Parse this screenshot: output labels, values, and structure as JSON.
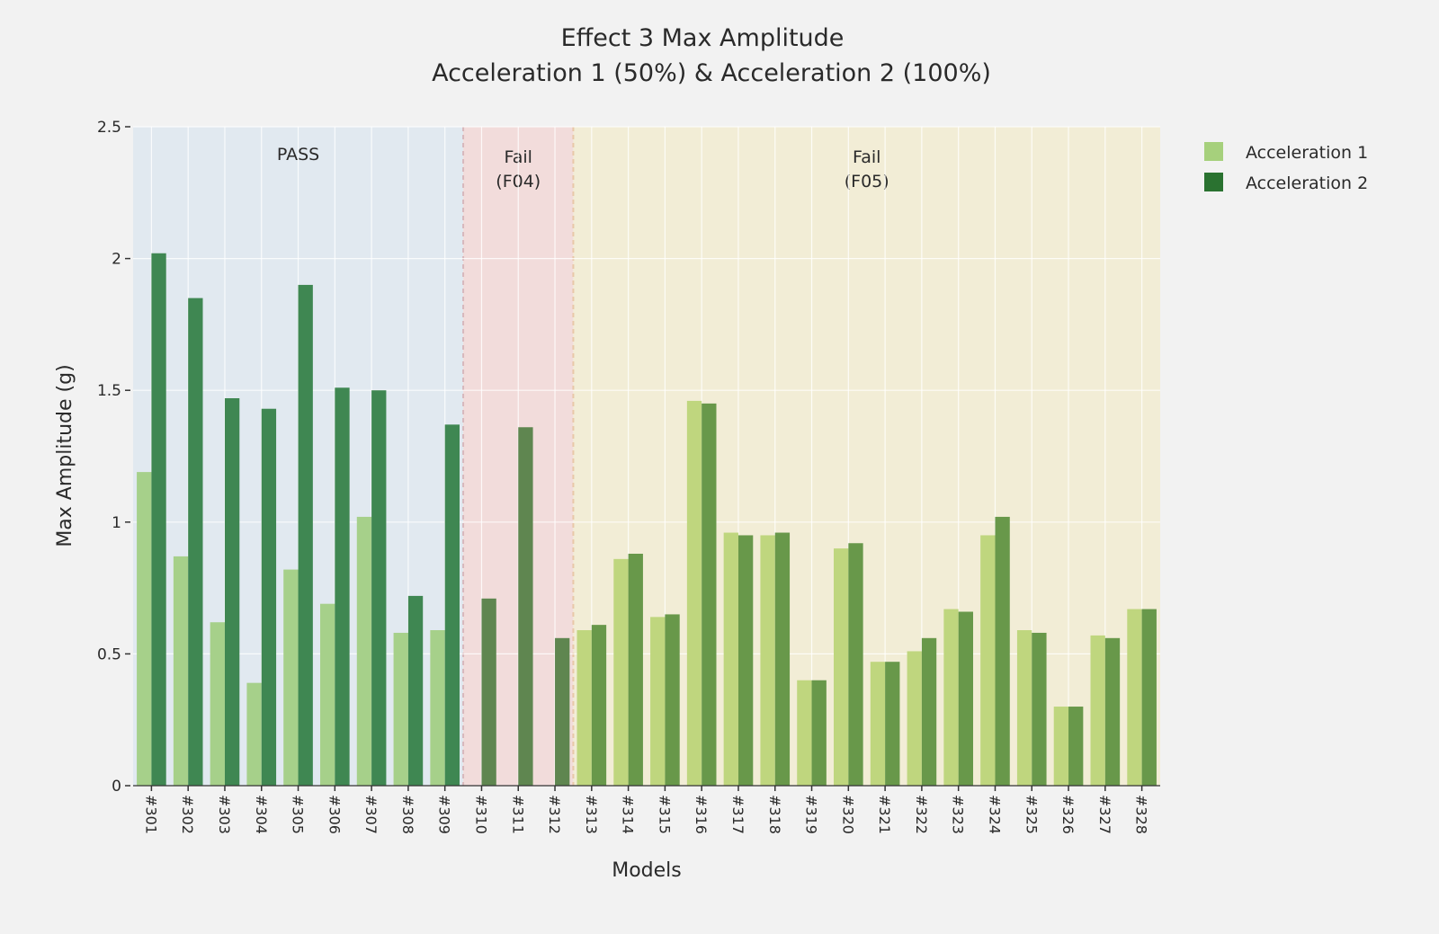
{
  "chart_data": {
    "type": "bar",
    "title": "Effect 3 Max Amplitude",
    "subtitle": "Acceleration 1 (50%) & Acceleration 2 (100%)",
    "xlabel": "Models",
    "ylabel": "Max Amplitude (g)",
    "ylim": [
      0,
      2.5
    ],
    "yticks": [
      0,
      0.5,
      1,
      1.5,
      2,
      2.5
    ],
    "ytick_labels": [
      "0",
      "0.5",
      "1",
      "1.5",
      "2",
      "2.5"
    ],
    "grid": true,
    "legend_position": "top-right",
    "categories": [
      "#301",
      "#302",
      "#303",
      "#304",
      "#305",
      "#306",
      "#307",
      "#308",
      "#309",
      "#310",
      "#311",
      "#312",
      "#313",
      "#314",
      "#315",
      "#316",
      "#317",
      "#318",
      "#319",
      "#320",
      "#321",
      "#322",
      "#323",
      "#324",
      "#325",
      "#326",
      "#327",
      "#328"
    ],
    "series": [
      {
        "name": "Acceleration 1",
        "legend_color": "#a6d07c",
        "values": [
          1.19,
          0.87,
          0.62,
          0.39,
          0.82,
          0.69,
          1.02,
          0.58,
          0.59,
          null,
          null,
          null,
          0.59,
          0.86,
          0.64,
          1.46,
          0.96,
          0.95,
          0.4,
          0.9,
          0.47,
          0.51,
          0.67,
          0.95,
          0.59,
          0.3,
          0.57,
          0.67
        ]
      },
      {
        "name": "Acceleration 2",
        "legend_color": "#2a7230",
        "values": [
          2.02,
          1.85,
          1.47,
          1.43,
          1.9,
          1.51,
          1.5,
          0.72,
          1.37,
          0.71,
          1.36,
          0.56,
          0.61,
          0.88,
          0.65,
          1.45,
          0.95,
          0.96,
          0.4,
          0.92,
          0.47,
          0.56,
          0.66,
          1.02,
          0.58,
          0.3,
          0.56,
          0.67
        ]
      }
    ],
    "regions": [
      {
        "label": "PASS",
        "label2": "",
        "from": "#301",
        "to": "#309",
        "background": "#e1e9f0",
        "color_a1": "#a6d08a",
        "color_a2": "#3f8752"
      },
      {
        "label": "Fail",
        "label2": "(F04)",
        "from": "#310",
        "to": "#312",
        "background": "#f2dcdb",
        "color_a1": "#a7c07a",
        "color_a2": "#5f8650"
      },
      {
        "label": "Fail",
        "label2": "(F05)",
        "from": "#313",
        "to": "#328",
        "background": "#f2edd6",
        "color_a1": "#bfd67e",
        "color_a2": "#68984a"
      }
    ]
  }
}
